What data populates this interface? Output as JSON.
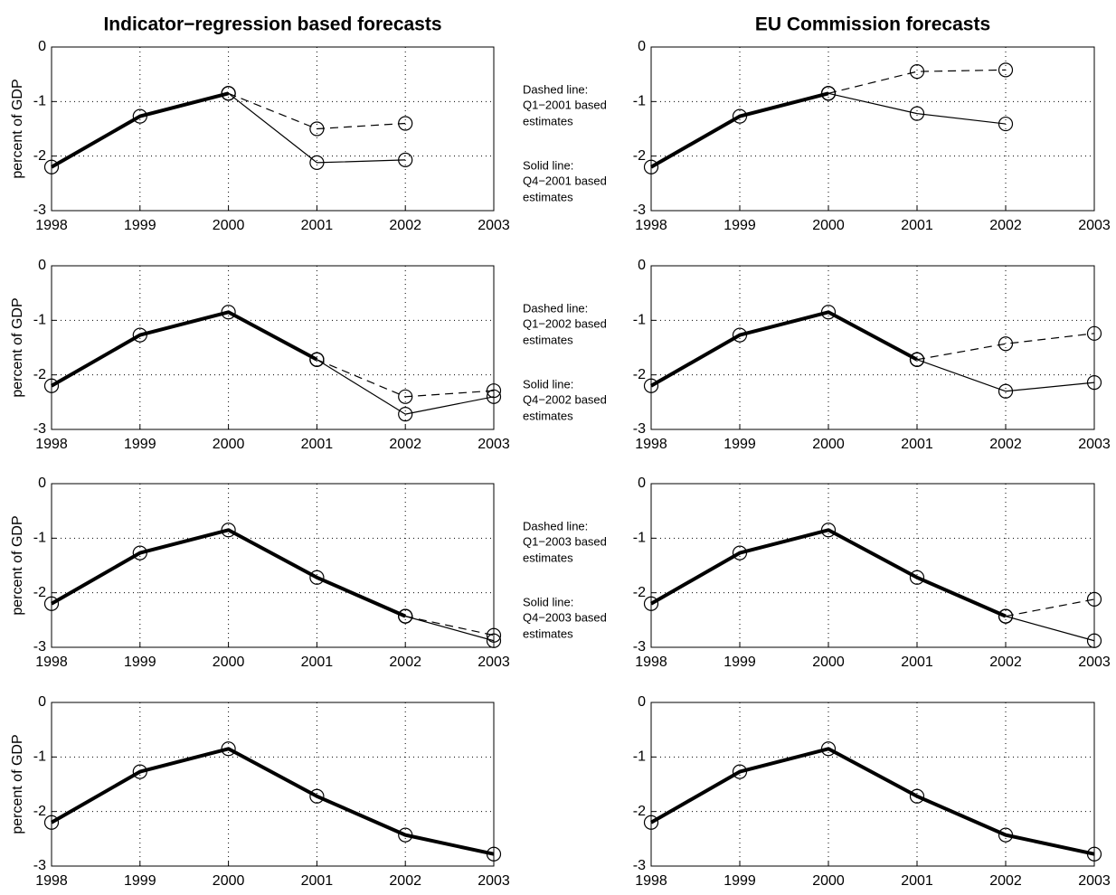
{
  "chart_data": [
    {
      "type": "line",
      "title": "Indicator−regression based forecasts",
      "ylabel": "percent of GDP",
      "x": [
        1998,
        1999,
        2000,
        2001,
        2002,
        2003
      ],
      "xlim": [
        1998,
        2003
      ],
      "xticks": [
        1998,
        1999,
        2000,
        2001,
        2002,
        2003
      ],
      "ylim": [
        -3,
        0
      ],
      "yticks": [
        -3,
        -2,
        -1,
        0
      ],
      "grid": true,
      "series": [
        {
          "color": "#000000",
          "style": "thick",
          "values": [
            -2.2,
            -1.27,
            -0.85,
            null,
            null,
            null
          ]
        },
        {
          "color": "#000000",
          "style": "dashed",
          "values": [
            null,
            null,
            -0.85,
            -1.5,
            -1.4,
            null
          ]
        },
        {
          "color": "#000000",
          "style": "thin",
          "values": [
            null,
            null,
            -0.85,
            -2.12,
            -2.07,
            null
          ]
        }
      ]
    },
    {
      "type": "line",
      "title": "EU Commission forecasts",
      "annotations": [
        "Dashed line:",
        "Q1−2001 based",
        "estimates",
        "Solid line:",
        "Q4−2001 based",
        "estimates"
      ],
      "x": [
        1998,
        1999,
        2000,
        2001,
        2002,
        2003
      ],
      "xlim": [
        1998,
        2003
      ],
      "xticks": [
        1998,
        1999,
        2000,
        2001,
        2002,
        2003
      ],
      "ylim": [
        -3,
        0
      ],
      "yticks": [
        -3,
        -2,
        -1,
        0
      ],
      "grid": true,
      "series": [
        {
          "color": "#000000",
          "style": "thick",
          "values": [
            -2.2,
            -1.27,
            -0.85,
            null,
            null,
            null
          ]
        },
        {
          "color": "#000000",
          "style": "dashed",
          "values": [
            null,
            null,
            -0.85,
            -0.45,
            -0.42,
            null
          ]
        },
        {
          "color": "#000000",
          "style": "thin",
          "values": [
            null,
            null,
            -0.85,
            -1.22,
            -1.41,
            null
          ]
        }
      ]
    },
    {
      "type": "line",
      "ylabel": "percent of GDP",
      "x": [
        1998,
        1999,
        2000,
        2001,
        2002,
        2003
      ],
      "xlim": [
        1998,
        2003
      ],
      "xticks": [
        1998,
        1999,
        2000,
        2001,
        2002,
        2003
      ],
      "ylim": [
        -3,
        0
      ],
      "yticks": [
        -3,
        -2,
        -1,
        0
      ],
      "grid": true,
      "series": [
        {
          "color": "#000000",
          "style": "thick",
          "values": [
            -2.2,
            -1.27,
            -0.85,
            -1.72,
            null,
            null
          ]
        },
        {
          "color": "#000000",
          "style": "dashed",
          "values": [
            null,
            null,
            null,
            -1.72,
            -2.4,
            -2.29
          ]
        },
        {
          "color": "#000000",
          "style": "thin",
          "values": [
            null,
            null,
            null,
            -1.72,
            -2.72,
            -2.4
          ]
        }
      ]
    },
    {
      "type": "line",
      "annotations": [
        "Dashed line:",
        "Q1−2002 based",
        "estimates",
        "Solid line:",
        "Q4−2002 based",
        "estimates"
      ],
      "x": [
        1998,
        1999,
        2000,
        2001,
        2002,
        2003
      ],
      "xlim": [
        1998,
        2003
      ],
      "xticks": [
        1998,
        1999,
        2000,
        2001,
        2002,
        2003
      ],
      "ylim": [
        -3,
        0
      ],
      "yticks": [
        -3,
        -2,
        -1,
        0
      ],
      "grid": true,
      "series": [
        {
          "color": "#000000",
          "style": "thick",
          "values": [
            -2.2,
            -1.27,
            -0.85,
            -1.72,
            null,
            null
          ]
        },
        {
          "color": "#000000",
          "style": "dashed",
          "values": [
            null,
            null,
            null,
            -1.72,
            -1.43,
            -1.24
          ]
        },
        {
          "color": "#000000",
          "style": "thin",
          "values": [
            null,
            null,
            null,
            -1.72,
            -2.3,
            -2.14
          ]
        }
      ]
    },
    {
      "type": "line",
      "ylabel": "percent of GDP",
      "x": [
        1998,
        1999,
        2000,
        2001,
        2002,
        2003
      ],
      "xlim": [
        1998,
        2003
      ],
      "xticks": [
        1998,
        1999,
        2000,
        2001,
        2002,
        2003
      ],
      "ylim": [
        -3,
        0
      ],
      "yticks": [
        -3,
        -2,
        -1,
        0
      ],
      "grid": true,
      "series": [
        {
          "color": "#000000",
          "style": "thick",
          "values": [
            -2.2,
            -1.27,
            -0.85,
            -1.72,
            -2.43,
            null
          ]
        },
        {
          "color": "#000000",
          "style": "dashed",
          "values": [
            null,
            null,
            null,
            null,
            -2.43,
            -2.78
          ]
        },
        {
          "color": "#000000",
          "style": "thin",
          "values": [
            null,
            null,
            null,
            null,
            -2.43,
            -2.88
          ]
        }
      ]
    },
    {
      "type": "line",
      "annotations": [
        "Dashed line:",
        "Q1−2003 based",
        "estimates",
        "Solid line:",
        "Q4−2003 based",
        "estimates"
      ],
      "x": [
        1998,
        1999,
        2000,
        2001,
        2002,
        2003
      ],
      "xlim": [
        1998,
        2003
      ],
      "xticks": [
        1998,
        1999,
        2000,
        2001,
        2002,
        2003
      ],
      "ylim": [
        -3,
        0
      ],
      "yticks": [
        -3,
        -2,
        -1,
        0
      ],
      "grid": true,
      "series": [
        {
          "color": "#000000",
          "style": "thick",
          "values": [
            -2.2,
            -1.27,
            -0.85,
            -1.72,
            -2.43,
            null
          ]
        },
        {
          "color": "#000000",
          "style": "dashed",
          "values": [
            null,
            null,
            null,
            null,
            -2.43,
            -2.12
          ]
        },
        {
          "color": "#000000",
          "style": "thin",
          "values": [
            null,
            null,
            null,
            null,
            -2.43,
            -2.88
          ]
        }
      ]
    },
    {
      "type": "line",
      "ylabel": "percent of GDP",
      "x": [
        1998,
        1999,
        2000,
        2001,
        2002,
        2003
      ],
      "xlim": [
        1998,
        2003
      ],
      "xticks": [
        1998,
        1999,
        2000,
        2001,
        2002,
        2003
      ],
      "ylim": [
        -3,
        0
      ],
      "yticks": [
        -3,
        -2,
        -1,
        0
      ],
      "grid": true,
      "series": [
        {
          "color": "#000000",
          "style": "thick",
          "values": [
            -2.2,
            -1.27,
            -0.85,
            -1.72,
            -2.43,
            -2.78
          ]
        }
      ]
    },
    {
      "type": "line",
      "x": [
        1998,
        1999,
        2000,
        2001,
        2002,
        2003
      ],
      "xlim": [
        1998,
        2003
      ],
      "xticks": [
        1998,
        1999,
        2000,
        2001,
        2002,
        2003
      ],
      "ylim": [
        -3,
        0
      ],
      "yticks": [
        -3,
        -2,
        -1,
        0
      ],
      "grid": true,
      "series": [
        {
          "color": "#000000",
          "style": "thick",
          "values": [
            -2.2,
            -1.27,
            -0.85,
            -1.72,
            -2.43,
            -2.78
          ]
        }
      ]
    }
  ]
}
